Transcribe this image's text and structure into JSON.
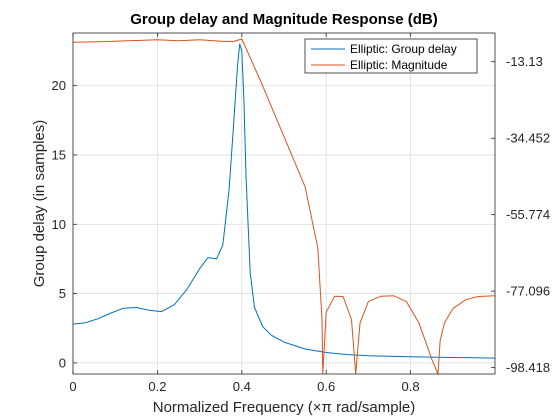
{
  "chart_data": {
    "type": "line",
    "title": "Group delay and Magnitude Response (dB)",
    "xlabel": "Normalized Frequency (×π rad/sample)",
    "ylabel_left": "Group delay (in samples)",
    "ylabel_right": "",
    "xlim": [
      0,
      1
    ],
    "ylim_left": [
      -0.8,
      23.8
    ],
    "ylim_right": [
      -100.2,
      -5.12
    ],
    "x_ticks": [
      "0",
      "0.2",
      "0.4",
      "0.6",
      "0.8"
    ],
    "x_tick_values": [
      0,
      0.2,
      0.4,
      0.6,
      0.8
    ],
    "y_ticks_left": [
      "0",
      "5",
      "10",
      "15",
      "20"
    ],
    "y_tick_values_left": [
      0,
      5,
      10,
      15,
      20
    ],
    "y_ticks_right": [
      "-13.13",
      "-34.452",
      "-55.774",
      "-77.096",
      "-98.418"
    ],
    "y_tick_values_right": [
      -13.13,
      -34.452,
      -55.774,
      -77.096,
      -98.418
    ],
    "grid": true,
    "legend_position": "top-right",
    "series": [
      {
        "name": "Elliptic: Group delay",
        "axis": "left",
        "color": "#0072BD",
        "x": [
          0,
          0.03,
          0.06,
          0.09,
          0.12,
          0.15,
          0.18,
          0.21,
          0.24,
          0.27,
          0.3,
          0.32,
          0.34,
          0.355,
          0.37,
          0.38,
          0.39,
          0.395,
          0.4,
          0.405,
          0.41,
          0.42,
          0.43,
          0.45,
          0.47,
          0.5,
          0.55,
          0.6,
          0.65,
          0.7,
          0.75,
          0.8,
          0.85,
          0.9,
          0.95,
          1.0
        ],
        "y": [
          2.8,
          2.9,
          3.2,
          3.6,
          3.95,
          4.0,
          3.8,
          3.7,
          4.2,
          5.3,
          6.8,
          7.6,
          7.5,
          8.5,
          12.5,
          17.0,
          21.5,
          23.0,
          22.5,
          19.0,
          13.5,
          6.5,
          4.0,
          2.6,
          2.0,
          1.5,
          1.0,
          0.75,
          0.6,
          0.52,
          0.48,
          0.44,
          0.42,
          0.39,
          0.37,
          0.35
        ]
      },
      {
        "name": "Elliptic: Magnitude",
        "axis": "right",
        "color": "#D95319",
        "x": [
          0,
          0.05,
          0.1,
          0.15,
          0.2,
          0.25,
          0.3,
          0.35,
          0.38,
          0.4,
          0.42,
          0.45,
          0.5,
          0.55,
          0.58,
          0.59,
          0.592,
          0.6,
          0.62,
          0.64,
          0.66,
          0.67,
          0.68,
          0.7,
          0.73,
          0.76,
          0.79,
          0.82,
          0.85,
          0.865,
          0.87,
          0.88,
          0.9,
          0.93,
          0.96,
          1.0
        ],
        "y": [
          -7.7,
          -7.6,
          -7.4,
          -7.2,
          -7.0,
          -7.3,
          -7.0,
          -7.4,
          -7.5,
          -6.8,
          -12.0,
          -20.0,
          -34.0,
          -48.0,
          -65.0,
          -85.0,
          -100.2,
          -83.0,
          -78.5,
          -78.6,
          -85.0,
          -100.2,
          -86.0,
          -80.0,
          -78.5,
          -78.4,
          -80.0,
          -86.0,
          -96.0,
          -100.2,
          -91.0,
          -86.0,
          -82.0,
          -79.5,
          -78.6,
          -78.4
        ]
      }
    ]
  }
}
